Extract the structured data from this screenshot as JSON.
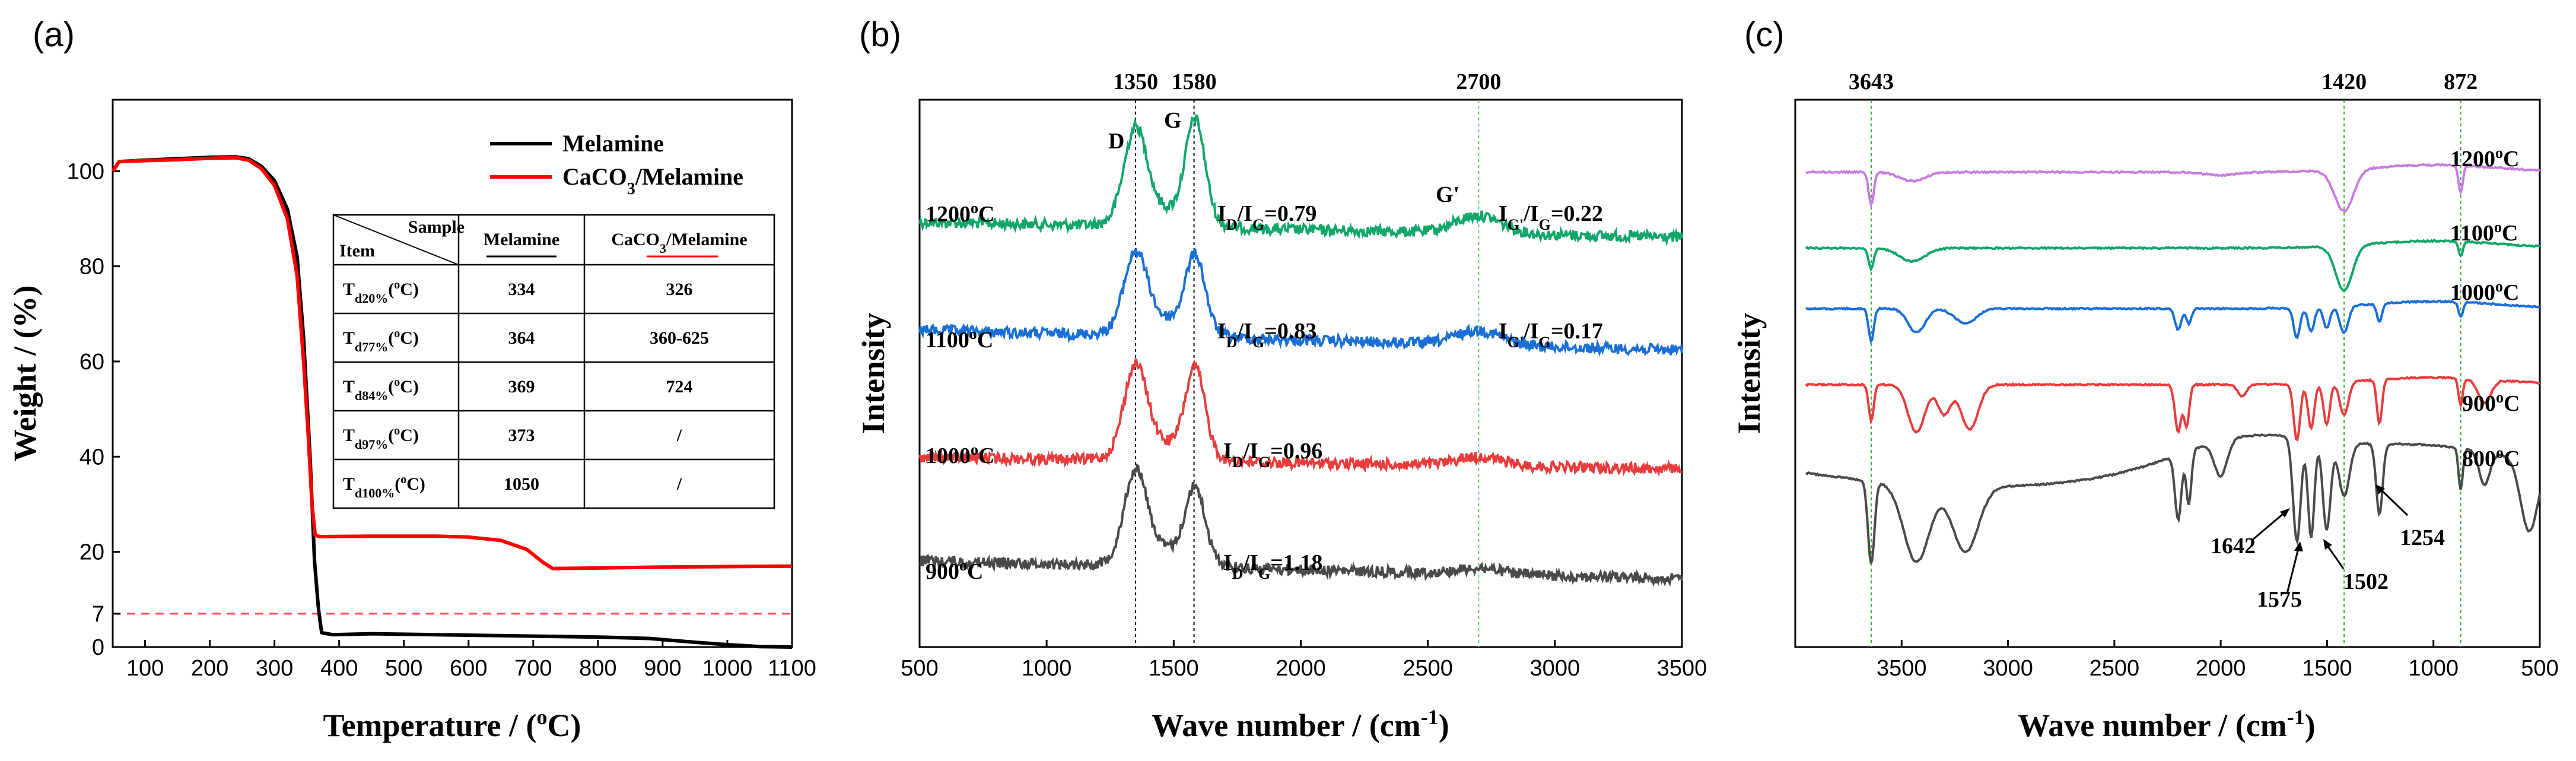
{
  "chart_data": [
    {
      "panel": "(a)",
      "type": "line",
      "xlabel": "Temperature / (°C)",
      "ylabel": "Weight / (%)",
      "xlim": [
        50,
        1100
      ],
      "ylim": [
        0,
        115
      ],
      "x_ticks": [
        "100",
        "200",
        "300",
        "400",
        "500",
        "600",
        "700",
        "800",
        "900",
        "1000",
        "1100"
      ],
      "y_ticks": [
        "0",
        "7",
        "20",
        "40",
        "60",
        "80",
        "100"
      ],
      "reference_line": {
        "y": 7,
        "style": "dashed",
        "color": "#ff4d4d"
      },
      "legend": {
        "placement": "top-right",
        "entries": [
          "Melamine",
          "CaCO3/Melamine"
        ]
      },
      "series": [
        {
          "name": "Melamine",
          "color": "#000000",
          "points": [
            [
              50,
              100
            ],
            [
              60,
              102
            ],
            [
              100,
              102.3
            ],
            [
              150,
              102.6
            ],
            [
              200,
              102.9
            ],
            [
              240,
              103.0
            ],
            [
              260,
              102.6
            ],
            [
              280,
              101
            ],
            [
              300,
              98
            ],
            [
              320,
              92
            ],
            [
              335,
              82
            ],
            [
              345,
              65
            ],
            [
              355,
              40
            ],
            [
              362,
              18
            ],
            [
              368,
              8
            ],
            [
              373,
              3
            ],
            [
              390,
              2.6
            ],
            [
              450,
              2.8
            ],
            [
              550,
              2.6
            ],
            [
              700,
              2.3
            ],
            [
              800,
              2.1
            ],
            [
              880,
              1.8
            ],
            [
              950,
              1.0
            ],
            [
              1000,
              0.5
            ],
            [
              1050,
              0.1
            ],
            [
              1100,
              0
            ]
          ]
        },
        {
          "name": "CaCO3/Melamine",
          "color": "#ff0000",
          "points": [
            [
              50,
              100
            ],
            [
              60,
              102
            ],
            [
              100,
              102.2
            ],
            [
              150,
              102.4
            ],
            [
              200,
              102.7
            ],
            [
              240,
              102.8
            ],
            [
              260,
              102.3
            ],
            [
              280,
              100.5
            ],
            [
              300,
              97
            ],
            [
              320,
              90
            ],
            [
              335,
              78
            ],
            [
              345,
              60
            ],
            [
              352,
              45
            ],
            [
              358,
              30
            ],
            [
              363,
              23.5
            ],
            [
              370,
              23.2
            ],
            [
              450,
              23.3
            ],
            [
              550,
              23.3
            ],
            [
              600,
              23.1
            ],
            [
              650,
              22.4
            ],
            [
              690,
              20.5
            ],
            [
              715,
              17.8
            ],
            [
              730,
              16.5
            ],
            [
              800,
              16.6
            ],
            [
              900,
              16.8
            ],
            [
              1000,
              16.9
            ],
            [
              1100,
              17.0
            ]
          ]
        }
      ],
      "table": {
        "header": [
          "Sample\nItem",
          "Melamine",
          "CaCO3/Melamine"
        ],
        "rows": [
          [
            "Td20%(°C)",
            "334",
            "326"
          ],
          [
            "Td77%(°C)",
            "364",
            "360-625"
          ],
          [
            "Td84%(°C)",
            "369",
            "724"
          ],
          [
            "Td97%(°C)",
            "373",
            "/"
          ],
          [
            "Td100%(°C)",
            "1050",
            "/"
          ]
        ]
      }
    },
    {
      "panel": "(b)",
      "type": "line",
      "xlabel": "Wave number / (cm-1)",
      "ylabel": "Intensity",
      "xlim": [
        500,
        3500
      ],
      "x_ticks": [
        "500",
        "1000",
        "1500",
        "2000",
        "2500",
        "3000",
        "3500"
      ],
      "reference_lines": [
        {
          "x": 1350,
          "label": "1350",
          "color": "#000000"
        },
        {
          "x": 1580,
          "label": "1580",
          "color": "#000000"
        },
        {
          "x": 2700,
          "label": "2700",
          "color": "#66cc66"
        }
      ],
      "peak_labels": [
        "D",
        "G",
        "G'"
      ],
      "series": [
        {
          "name": "1200°C",
          "color": "#12a66b",
          "ratio": "ID/IG=0.79",
          "ratio2": "IG'/IG=0.22"
        },
        {
          "name": "1100°C",
          "color": "#1a6fd6",
          "ratio": "ID/IG=0.83",
          "ratio2": "IG'/IG=0.17"
        },
        {
          "name": "1000°C",
          "color": "#e83c3c",
          "ratio": "ID/IG=0.96"
        },
        {
          "name": "900°C",
          "color": "#4a4a4a",
          "ratio": "ID/IG=1.18"
        }
      ]
    },
    {
      "panel": "(c)",
      "type": "line",
      "xlabel": "Wave number / (cm-1)",
      "ylabel": "Intensity",
      "xlim": [
        4000,
        500
      ],
      "x_ticks": [
        "3500",
        "3000",
        "2500",
        "2000",
        "1500",
        "1000",
        "500"
      ],
      "reference_lines": [
        {
          "x": 3643,
          "label": "3643"
        },
        {
          "x": 1420,
          "label": "1420"
        },
        {
          "x": 872,
          "label": "872"
        }
      ],
      "band_labels": [
        "1642",
        "1575",
        "1502",
        "1254"
      ],
      "series": [
        {
          "name": "1200°C",
          "color": "#c77de0"
        },
        {
          "name": "1100°C",
          "color": "#12a66b"
        },
        {
          "name": "1000°C",
          "color": "#1a6fd6"
        },
        {
          "name": "900°C",
          "color": "#e83c3c"
        },
        {
          "name": "800°C",
          "color": "#4a4a4a"
        }
      ]
    }
  ]
}
